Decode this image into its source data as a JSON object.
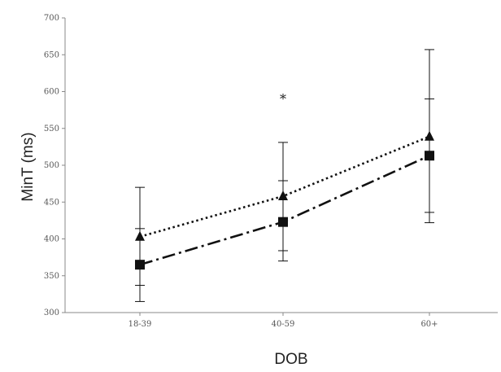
{
  "chart_data": {
    "type": "line",
    "xlabel": "DOB",
    "ylabel": "MinT (ms)",
    "ylim": [
      300,
      700
    ],
    "yticks": [
      300,
      350,
      400,
      450,
      500,
      550,
      600,
      650,
      700
    ],
    "categories": [
      "18-39",
      "40-59",
      "60+"
    ],
    "series": [
      {
        "marker": "triangle",
        "line_style": "dotted",
        "values": [
          403,
          458,
          539
        ],
        "error_low": [
          337,
          384,
          436
        ],
        "error_high": [
          470,
          531,
          657
        ]
      },
      {
        "marker": "square",
        "line_style": "dash-dot",
        "values": [
          365,
          423,
          513
        ],
        "error_low": [
          315,
          370,
          422
        ],
        "error_high": [
          414,
          479,
          590
        ]
      }
    ],
    "annotations": [
      {
        "text": "*",
        "category": "40-59",
        "y": 595
      }
    ],
    "grid": false,
    "legend": "none",
    "colors": {
      "line": "#111111",
      "axis": "#888888",
      "text": "#555555"
    }
  }
}
